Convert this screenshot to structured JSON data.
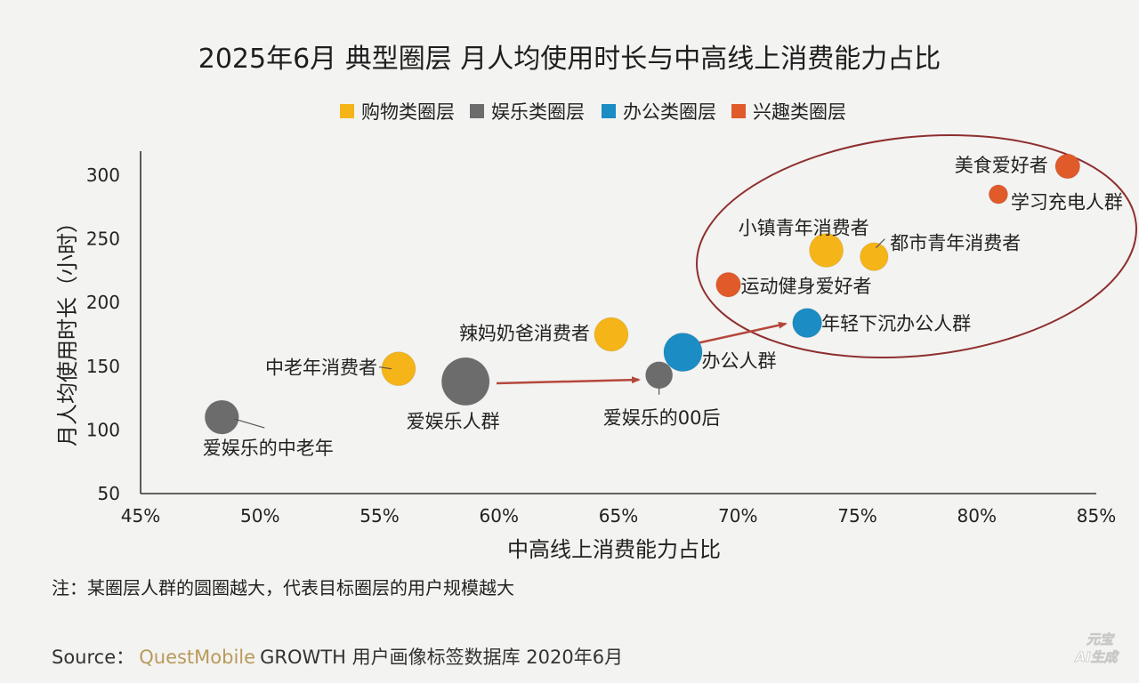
{
  "chart_data": {
    "type": "scatter",
    "title": "2025年6月 典型圈层 月人均使用时长与中高线上消费能力占比",
    "xlabel": "中高线上消费能力占比",
    "ylabel": "月人均使用时长（小时）",
    "xlim": [
      45,
      85
    ],
    "ylim": [
      50,
      300
    ],
    "x_ticks": [
      "45%",
      "50%",
      "55%",
      "60%",
      "65%",
      "70%",
      "75%",
      "80%",
      "85%"
    ],
    "y_ticks": [
      "50",
      "100",
      "150",
      "200",
      "250",
      "300"
    ],
    "legend_position": "top",
    "grid": false,
    "legend": [
      {
        "name": "购物类圈层",
        "color": "#f5b417"
      },
      {
        "name": "娱乐类圈层",
        "color": "#6c6c6c"
      },
      {
        "name": "办公类圈层",
        "color": "#1b8cc4"
      },
      {
        "name": "兴趣类圈层",
        "color": "#e05a2a"
      }
    ],
    "series": [
      {
        "name": "购物类圈层",
        "color": "#f5b417",
        "points": [
          {
            "label": "中老年消费者",
            "x": 55.8,
            "y": 148,
            "size": 2
          },
          {
            "label": "辣妈奶爸消费者",
            "x": 64.7,
            "y": 175,
            "size": 2
          },
          {
            "label": "小镇青年消费者",
            "x": 73.7,
            "y": 241,
            "size": 2
          },
          {
            "label": "都市青年消费者",
            "x": 75.7,
            "y": 236,
            "size": 1.5
          }
        ]
      },
      {
        "name": "娱乐类圈层",
        "color": "#6c6c6c",
        "points": [
          {
            "label": "爱娱乐的中老年",
            "x": 48.4,
            "y": 110,
            "size": 2
          },
          {
            "label": "爱娱乐人群",
            "x": 58.6,
            "y": 138,
            "size": 3.2
          },
          {
            "label": "爱娱乐的00后",
            "x": 66.7,
            "y": 143,
            "size": 1.4
          }
        ]
      },
      {
        "name": "办公类圈层",
        "color": "#1b8cc4",
        "points": [
          {
            "label": "办公人群",
            "x": 67.7,
            "y": 161,
            "size": 2.4
          },
          {
            "label": "年轻下沉办公人群",
            "x": 72.9,
            "y": 184,
            "size": 1.6
          }
        ]
      },
      {
        "name": "兴趣类圈层",
        "color": "#e05a2a",
        "points": [
          {
            "label": "美食爱好者",
            "x": 83.8,
            "y": 307,
            "size": 1.2
          },
          {
            "label": "学习充电人群",
            "x": 80.9,
            "y": 285,
            "size": 0.7
          },
          {
            "label": "运动健身爱好者",
            "x": 69.6,
            "y": 214,
            "size": 1.2
          }
        ]
      }
    ]
  },
  "note": "注：某圈层人群的圆圈越大，代表目标圈层的用户规模越大",
  "source": {
    "prefix": "Source：",
    "brand": "QuestMobile",
    "suffix": "GROWTH 用户画像标签数据库 2020年6月"
  },
  "watermark": {
    "line1": "元宝",
    "line2": "AI生成"
  }
}
